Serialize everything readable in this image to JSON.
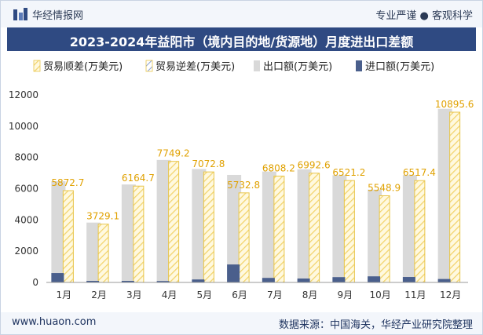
{
  "header": {
    "site_name": "华经情报网",
    "tagline": "专业严谨 ● 客观科学",
    "title": "2023-2024年益阳市（境内目的地/货源地）月度进出口差额"
  },
  "footer": {
    "url": "www.huaon.com",
    "source": "数据来源：中国海关，华经产业研究院整理"
  },
  "colors": {
    "surplus": "#fce38a",
    "deficit": "#b8c8e8",
    "export": "#d9d9d9",
    "import": "#4a5f8c",
    "title_bg": "#2f4a82"
  },
  "chart_data": {
    "type": "bar",
    "categories": [
      "1月",
      "2月",
      "3月",
      "4月",
      "5月",
      "6月",
      "7月",
      "8月",
      "9月",
      "10月",
      "11月",
      "12月"
    ],
    "series": [
      {
        "name": "贸易顺差(万美元)",
        "values": [
          5872.7,
          3729.1,
          6164.7,
          7749.2,
          7072.8,
          5732.8,
          6808.2,
          6992.6,
          6521.2,
          5548.9,
          6517.4,
          10895.6
        ]
      },
      {
        "name": "贸易逆差(万美元)",
        "values": [
          0,
          0,
          0,
          0,
          0,
          0,
          0,
          0,
          0,
          0,
          0,
          0
        ]
      },
      {
        "name": "出口额(万美元)",
        "values": [
          6480,
          3830,
          6270,
          7840,
          7260,
          6880,
          7100,
          7240,
          6860,
          5940,
          6870,
          11110
        ]
      },
      {
        "name": "进口额(万美元)",
        "values": [
          600,
          100,
          100,
          90,
          190,
          1150,
          290,
          250,
          340,
          390,
          350,
          220
        ]
      }
    ],
    "data_labels": [
      "5872.7",
      "3729.1",
      "6164.7",
      "7749.2",
      "7072.8",
      "5732.8",
      "6808.2",
      "6992.6",
      "6521.2",
      "5548.9",
      "6517.4",
      "10895.6"
    ],
    "yticks": [
      "0",
      "2000",
      "4000",
      "6000",
      "8000",
      "10000",
      "12000"
    ],
    "ylim": [
      0,
      12000
    ],
    "legend_position": "top",
    "grid": false
  }
}
